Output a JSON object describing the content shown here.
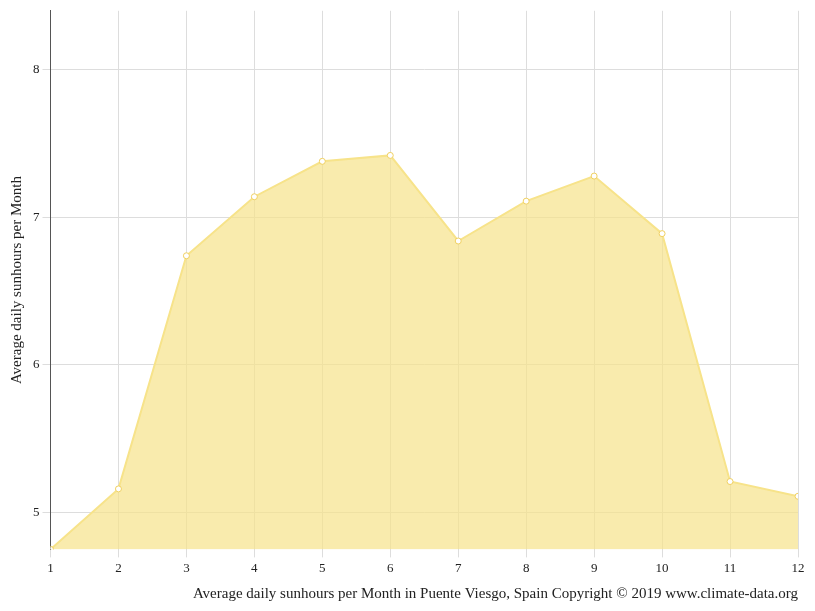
{
  "chart_data": {
    "type": "area",
    "title": "Average daily sunhours per Month in Puente Viesgo, Spain Copyright © 2019 www.climate-data.org",
    "y_label": "Average daily sunhours per Month",
    "categories": [
      "1",
      "2",
      "3",
      "4",
      "5",
      "6",
      "7",
      "8",
      "9",
      "10",
      "11",
      "12"
    ],
    "values": [
      4.75,
      5.16,
      6.74,
      7.14,
      7.38,
      7.42,
      6.84,
      7.11,
      7.28,
      6.89,
      5.21,
      5.11
    ],
    "color": "#f7e38a",
    "ylim": [
      4.75,
      8.4
    ],
    "yticks": [
      5,
      6,
      7,
      8
    ],
    "grid": true,
    "marker": "circle"
  }
}
